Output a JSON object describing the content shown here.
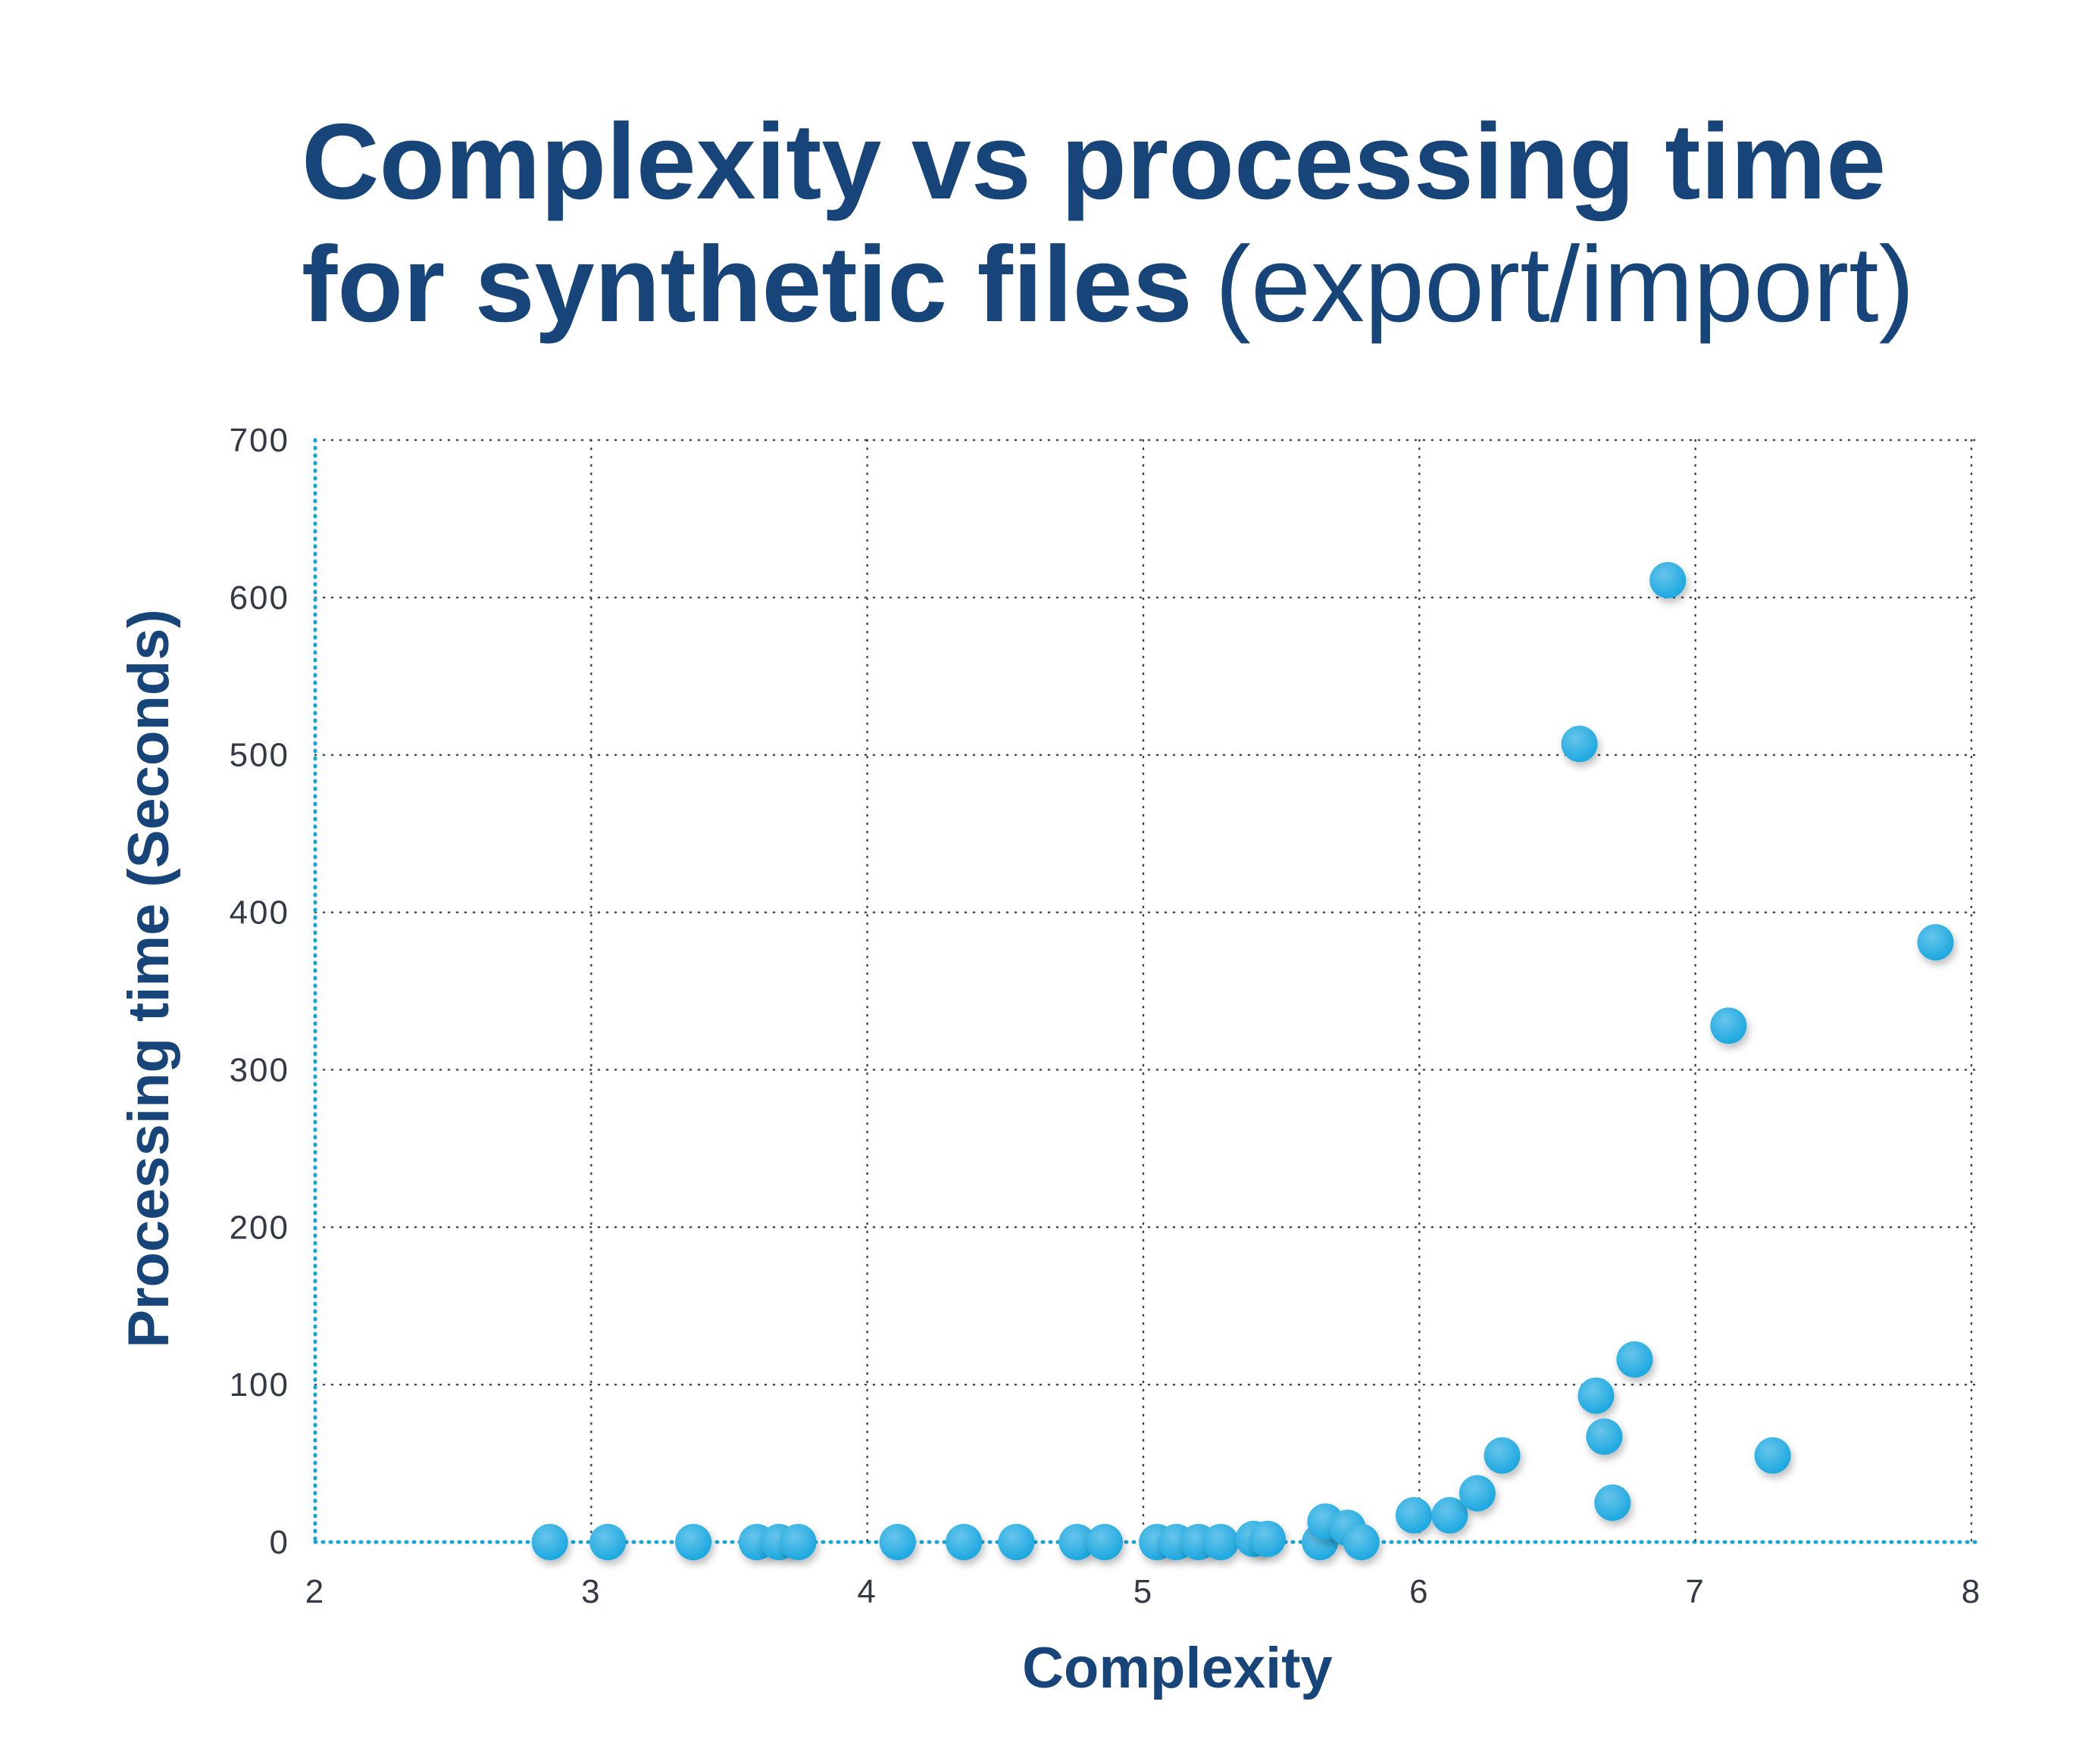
{
  "chart_data": {
    "type": "scatter",
    "title_lines": [
      "Complexity vs processing time",
      "for synthetic files"
    ],
    "title_suffix": "(export/import)",
    "x_label": "Complexity",
    "y_label": "Processing time (Seconds)",
    "xlim": [
      2,
      8
    ],
    "xticks": [
      2,
      3,
      4,
      5,
      6,
      7,
      8
    ],
    "ylim": [
      0,
      700
    ],
    "yticks": [
      0,
      100,
      200,
      300,
      400,
      500,
      600,
      700
    ],
    "grid": true,
    "axis_color": "#1aa3d6",
    "grid_color": "#444444",
    "series": [
      {
        "name": "Synthetic files",
        "color": "#18a6e0",
        "x": [
          2.85,
          3.06,
          3.37,
          3.6,
          3.68,
          3.75,
          4.11,
          4.35,
          4.54,
          4.76,
          4.86,
          5.05,
          5.12,
          5.2,
          5.28,
          5.4,
          5.45,
          5.64,
          5.66,
          5.74,
          5.79,
          5.98,
          6.11,
          6.21,
          6.3,
          6.64,
          6.67,
          6.7,
          6.78,
          6.58,
          6.9,
          7.12,
          7.28,
          7.87
        ],
        "values": [
          0,
          0,
          0,
          0,
          0,
          0,
          0,
          0,
          0,
          0,
          0,
          0,
          0,
          0,
          0,
          2,
          2,
          0,
          13,
          9,
          0,
          17,
          17,
          31,
          55,
          93,
          67,
          25,
          116,
          507,
          611,
          328,
          55,
          381
        ]
      }
    ]
  }
}
